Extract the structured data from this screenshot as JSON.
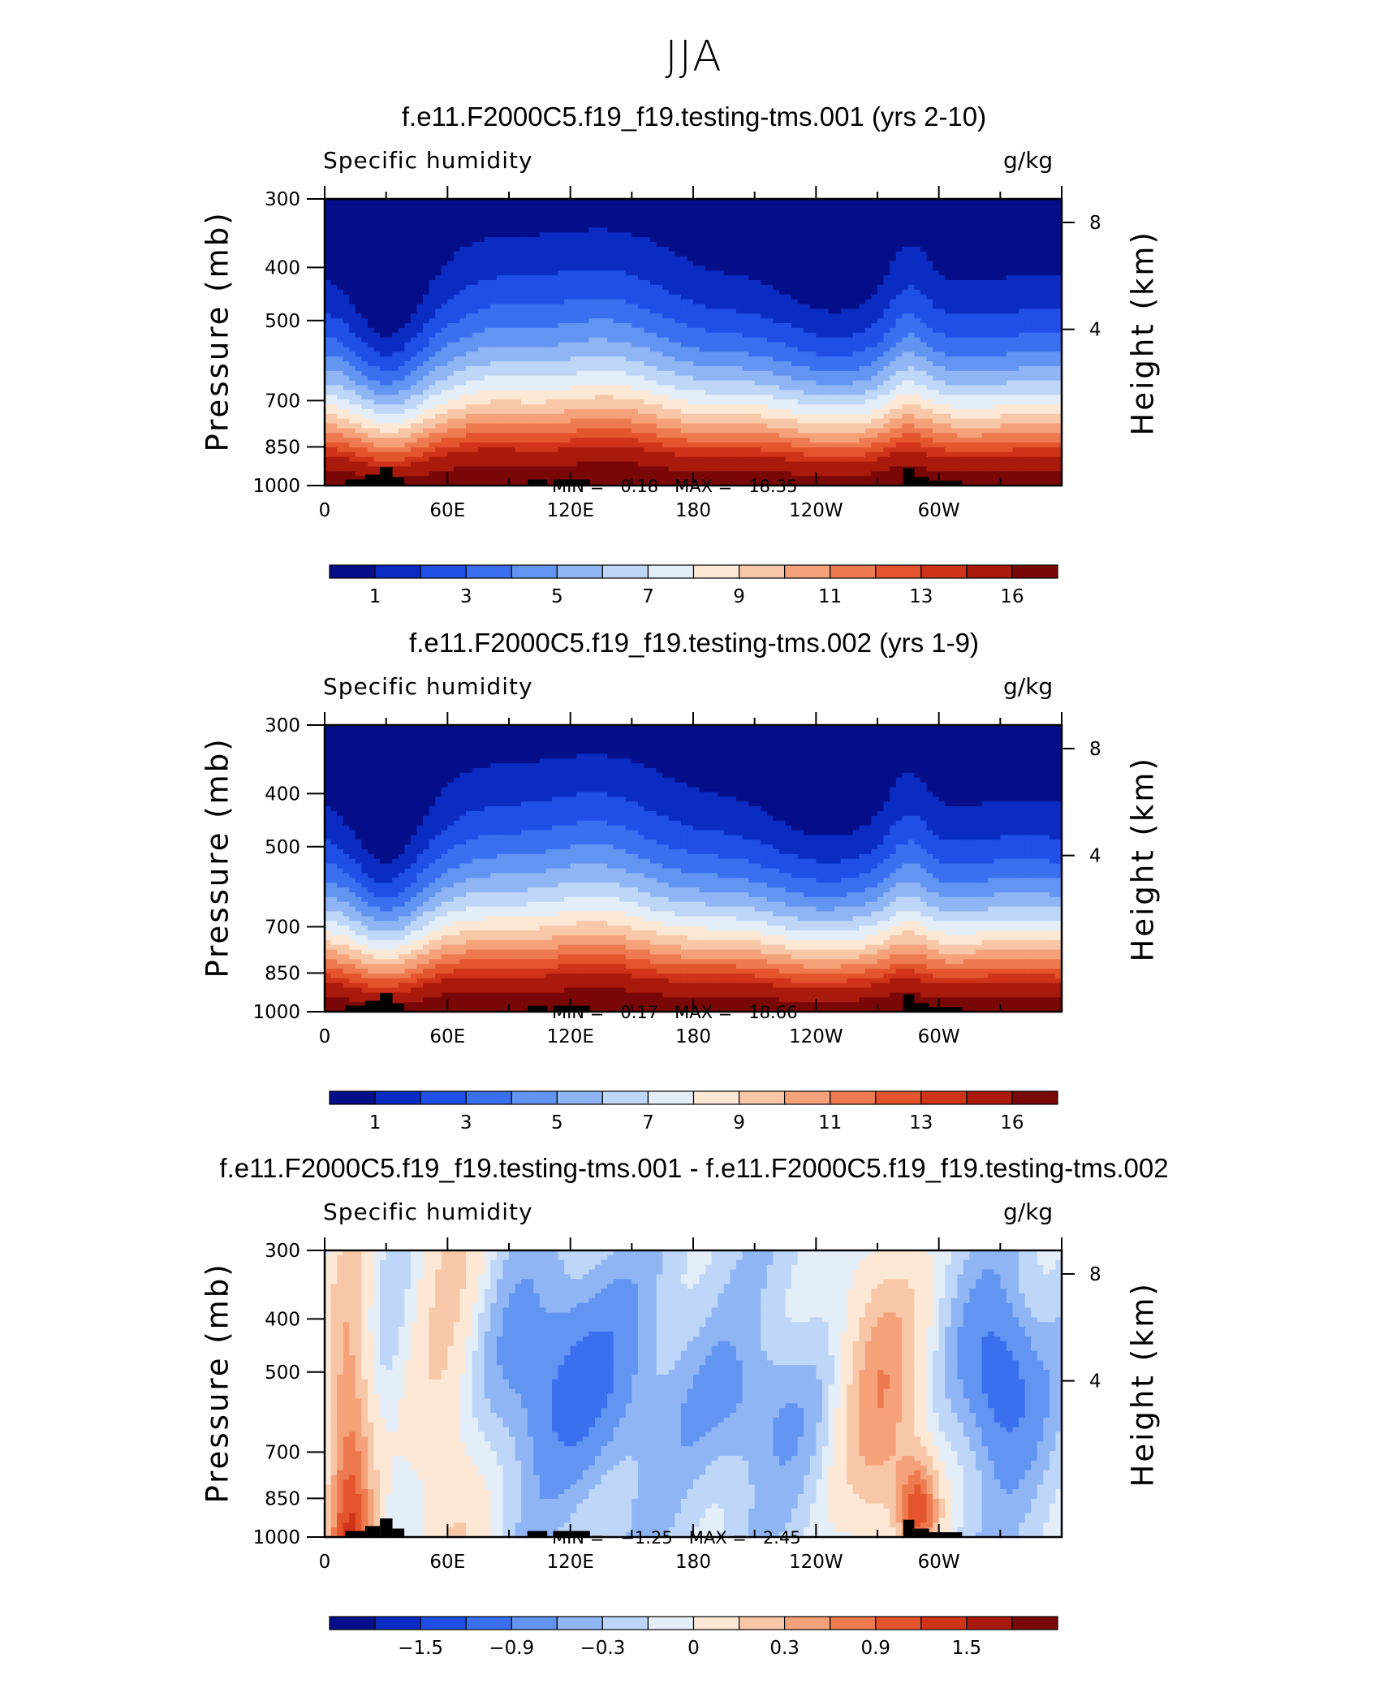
{
  "page_title": "JJA",
  "colorbar_colors": [
    "#040e89",
    "#0a2cc2",
    "#1f4fe6",
    "#3a70f0",
    "#6294f2",
    "#8fb5f5",
    "#bed6f7",
    "#e4eef9",
    "#fde8d6",
    "#f8c7a7",
    "#f5a27b",
    "#ee7b4f",
    "#e4542d",
    "#cf3318",
    "#aa1a0c",
    "#7a0707"
  ],
  "panels": [
    {
      "title": "f.e11.F2000C5.f19_f19.testing-tms.001 (yrs 2-10)",
      "variable": "Specific humidity",
      "units": "g/kg",
      "min_label": "MIN =",
      "min_value": "0.18",
      "max_label": "MAX =",
      "max_value": "18.35",
      "colorbar_labels": [
        "1",
        "3",
        "5",
        "7",
        "9",
        "11",
        "13",
        "16"
      ],
      "kind": "abs",
      "seed": 1
    },
    {
      "title": "f.e11.F2000C5.f19_f19.testing-tms.002 (yrs 1-9)",
      "variable": "Specific humidity",
      "units": "g/kg",
      "min_label": "MIN =",
      "min_value": "0.17",
      "max_label": "MAX =",
      "max_value": "18.66",
      "colorbar_labels": [
        "1",
        "3",
        "5",
        "7",
        "9",
        "11",
        "13",
        "16"
      ],
      "kind": "abs",
      "seed": 2
    },
    {
      "title": "f.e11.F2000C5.f19_f19.testing-tms.001 - f.e11.F2000C5.f19_f19.testing-tms.002",
      "variable": "Specific humidity",
      "units": "g/kg",
      "min_label": "MIN =",
      "min_value": "−1.25",
      "max_label": "MAX =",
      "max_value": "2.45",
      "colorbar_labels": [
        "−1.5",
        "−0.9",
        "−0.3",
        "0",
        "0.3",
        "0.9",
        "1.5"
      ],
      "kind": "diff",
      "seed": 3
    }
  ],
  "axes": {
    "x_tick_labels": [
      "0",
      "60E",
      "120E",
      "180",
      "120W",
      "60W"
    ],
    "y_tick_labels": [
      "300",
      "400",
      "500",
      "700",
      "850",
      "1000"
    ],
    "y_right_tick_labels": [
      "8",
      "4"
    ],
    "ylabel_left": "Pressure (mb)",
    "ylabel_right": "Height (km)"
  },
  "chart_data": [
    {
      "type": "heatmap",
      "title": "f.e11.F2000C5.f19_f19.testing-tms.001 (yrs 2-10)",
      "subtitle_left": "Specific humidity",
      "subtitle_right": "g/kg",
      "x": [
        "0",
        "60E",
        "120E",
        "180",
        "120W",
        "60W"
      ],
      "xlim": [
        0,
        360
      ],
      "ylabel": "Pressure (mb)",
      "ylabel_right": "Height (km)",
      "y": [
        300,
        400,
        500,
        700,
        850,
        1000
      ],
      "ylim": [
        1000,
        300
      ],
      "y_right_ticks": [
        8,
        4
      ],
      "min": 0.18,
      "max": 18.35,
      "contour_levels": [
        1,
        2,
        3,
        4,
        5,
        6,
        7,
        8,
        9,
        10,
        11,
        12,
        13,
        14,
        16
      ],
      "colorbar_labels": [
        "1",
        "3",
        "5",
        "7",
        "9",
        "11",
        "13",
        "16"
      ]
    },
    {
      "type": "heatmap",
      "title": "f.e11.F2000C5.f19_f19.testing-tms.002 (yrs 1-9)",
      "subtitle_left": "Specific humidity",
      "subtitle_right": "g/kg",
      "x": [
        "0",
        "60E",
        "120E",
        "180",
        "120W",
        "60W"
      ],
      "xlim": [
        0,
        360
      ],
      "ylabel": "Pressure (mb)",
      "ylabel_right": "Height (km)",
      "y": [
        300,
        400,
        500,
        700,
        850,
        1000
      ],
      "ylim": [
        1000,
        300
      ],
      "y_right_ticks": [
        8,
        4
      ],
      "min": 0.17,
      "max": 18.66,
      "contour_levels": [
        1,
        2,
        3,
        4,
        5,
        6,
        7,
        8,
        9,
        10,
        11,
        12,
        13,
        14,
        16
      ],
      "colorbar_labels": [
        "1",
        "3",
        "5",
        "7",
        "9",
        "11",
        "13",
        "16"
      ]
    },
    {
      "type": "heatmap",
      "title": "f.e11.F2000C5.f19_f19.testing-tms.001 - f.e11.F2000C5.f19_f19.testing-tms.002",
      "subtitle_left": "Specific humidity",
      "subtitle_right": "g/kg",
      "x": [
        "0",
        "60E",
        "120E",
        "180",
        "120W",
        "60W"
      ],
      "xlim": [
        0,
        360
      ],
      "ylabel": "Pressure (mb)",
      "ylabel_right": "Height (km)",
      "y": [
        300,
        400,
        500,
        700,
        850,
        1000
      ],
      "ylim": [
        1000,
        300
      ],
      "y_right_ticks": [
        8,
        4
      ],
      "min": -1.25,
      "max": 2.45,
      "colorbar_labels": [
        "−1.5",
        "−0.9",
        "−0.3",
        "0",
        "0.3",
        "0.9",
        "1.5"
      ]
    }
  ]
}
